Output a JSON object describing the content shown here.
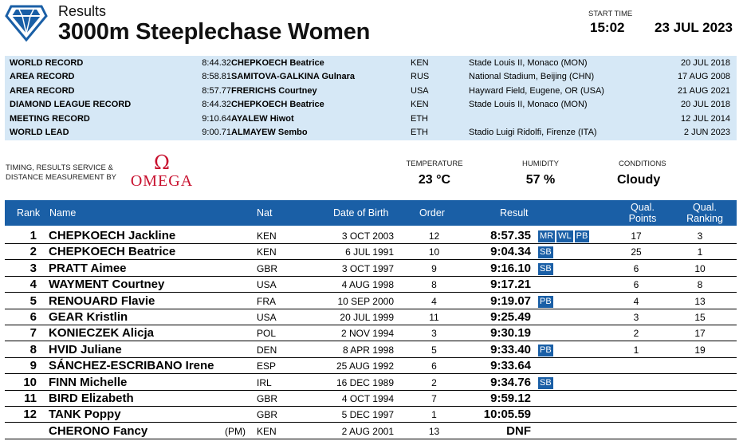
{
  "header": {
    "results_label": "Results",
    "event_title": "3000m Steeplechase Women",
    "start_time_label": "START TIME",
    "start_time": "15:02",
    "date": "23 JUL 2023"
  },
  "records": [
    {
      "type": "WORLD RECORD",
      "perf": "8:44.32",
      "name": "CHEPKOECH Beatrice",
      "nat": "KEN",
      "venue": "Stade Louis II, Monaco (MON)",
      "date": "20 JUL 2018"
    },
    {
      "type": "AREA RECORD",
      "perf": "8:58.81",
      "name": "SAMITOVA-GALKINA Gulnara",
      "nat": "RUS",
      "venue": "National Stadium, Beijing (CHN)",
      "date": "17 AUG 2008"
    },
    {
      "type": "AREA RECORD",
      "perf": "8:57.77",
      "name": "FRERICHS Courtney",
      "nat": "USA",
      "venue": "Hayward Field, Eugene, OR (USA)",
      "date": "21 AUG 2021"
    },
    {
      "type": "DIAMOND LEAGUE RECORD",
      "perf": "8:44.32",
      "name": "CHEPKOECH Beatrice",
      "nat": "KEN",
      "venue": "Stade Louis II, Monaco (MON)",
      "date": "20 JUL 2018"
    },
    {
      "type": "MEETING RECORD",
      "perf": "9:10.64",
      "name": "AYALEW Hiwot",
      "nat": "ETH",
      "venue": "",
      "date": "12 JUL 2014"
    },
    {
      "type": "WORLD LEAD",
      "perf": "9:00.71",
      "name": "ALMAYEW Sembo",
      "nat": "ETH",
      "venue": "Stadio Luigi Ridolfi, Firenze (ITA)",
      "date": "2 JUN 2023"
    }
  ],
  "timing": {
    "label_line1": "TIMING, RESULTS SERVICE &",
    "label_line2": "DISTANCE MEASUREMENT BY",
    "sponsor": "OMEGA"
  },
  "conditions": {
    "temperature_label": "TEMPERATURE",
    "temperature": "23 °C",
    "humidity_label": "HUMIDITY",
    "humidity": "57 %",
    "conditions_label": "CONDITIONS",
    "conditions": "Cloudy"
  },
  "columns": {
    "rank": "Rank",
    "name": "Name",
    "nat": "Nat",
    "dob": "Date of Birth",
    "order": "Order",
    "result": "Result",
    "qual_points_1": "Qual.",
    "qual_points_2": "Points",
    "qual_ranking_1": "Qual.",
    "qual_ranking_2": "Ranking"
  },
  "athletes": [
    {
      "rank": "1",
      "name": "CHEPKOECH Jackline",
      "pm": "",
      "nat": "KEN",
      "dob": "3 OCT 2003",
      "order": "12",
      "result": "8:57.35",
      "badges": [
        "MR",
        "WL",
        "PB"
      ],
      "qual_points": "17",
      "qual_ranking": "3"
    },
    {
      "rank": "2",
      "name": "CHEPKOECH Beatrice",
      "pm": "",
      "nat": "KEN",
      "dob": "6 JUL 1991",
      "order": "10",
      "result": "9:04.34",
      "badges": [
        "SB"
      ],
      "qual_points": "25",
      "qual_ranking": "1"
    },
    {
      "rank": "3",
      "name": "PRATT Aimee",
      "pm": "",
      "nat": "GBR",
      "dob": "3 OCT 1997",
      "order": "9",
      "result": "9:16.10",
      "badges": [
        "SB"
      ],
      "qual_points": "6",
      "qual_ranking": "10"
    },
    {
      "rank": "4",
      "name": "WAYMENT Courtney",
      "pm": "",
      "nat": "USA",
      "dob": "4 AUG 1998",
      "order": "8",
      "result": "9:17.21",
      "badges": [],
      "qual_points": "6",
      "qual_ranking": "8"
    },
    {
      "rank": "5",
      "name": "RENOUARD Flavie",
      "pm": "",
      "nat": "FRA",
      "dob": "10 SEP 2000",
      "order": "4",
      "result": "9:19.07",
      "badges": [
        "PB"
      ],
      "qual_points": "4",
      "qual_ranking": "13"
    },
    {
      "rank": "6",
      "name": "GEAR Kristlin",
      "pm": "",
      "nat": "USA",
      "dob": "20 JUL 1999",
      "order": "11",
      "result": "9:25.49",
      "badges": [],
      "qual_points": "3",
      "qual_ranking": "15"
    },
    {
      "rank": "7",
      "name": "KONIECZEK Alicja",
      "pm": "",
      "nat": "POL",
      "dob": "2 NOV 1994",
      "order": "3",
      "result": "9:30.19",
      "badges": [],
      "qual_points": "2",
      "qual_ranking": "17"
    },
    {
      "rank": "8",
      "name": "HVID Juliane",
      "pm": "",
      "nat": "DEN",
      "dob": "8 APR 1998",
      "order": "5",
      "result": "9:33.40",
      "badges": [
        "PB"
      ],
      "qual_points": "1",
      "qual_ranking": "19"
    },
    {
      "rank": "9",
      "name": "SÁNCHEZ-ESCRIBANO Irene",
      "pm": "",
      "nat": "ESP",
      "dob": "25 AUG 1992",
      "order": "6",
      "result": "9:33.64",
      "badges": [],
      "qual_points": "",
      "qual_ranking": ""
    },
    {
      "rank": "10",
      "name": "FINN Michelle",
      "pm": "",
      "nat": "IRL",
      "dob": "16 DEC 1989",
      "order": "2",
      "result": "9:34.76",
      "badges": [
        "SB"
      ],
      "qual_points": "",
      "qual_ranking": ""
    },
    {
      "rank": "11",
      "name": "BIRD Elizabeth",
      "pm": "",
      "nat": "GBR",
      "dob": "4 OCT 1994",
      "order": "7",
      "result": "9:59.12",
      "badges": [],
      "qual_points": "",
      "qual_ranking": ""
    },
    {
      "rank": "12",
      "name": "TANK Poppy",
      "pm": "",
      "nat": "GBR",
      "dob": "5 DEC 1997",
      "order": "1",
      "result": "10:05.59",
      "badges": [],
      "qual_points": "",
      "qual_ranking": ""
    },
    {
      "rank": "",
      "name": "CHERONO Fancy",
      "pm": "(PM)",
      "nat": "KEN",
      "dob": "2 AUG 2001",
      "order": "13",
      "result": "DNF",
      "badges": [],
      "qual_points": "",
      "qual_ranking": ""
    }
  ],
  "colors": {
    "header_blue": "#1a5fa6",
    "record_bg": "#d6e8f6",
    "omega_red": "#c8102e"
  }
}
